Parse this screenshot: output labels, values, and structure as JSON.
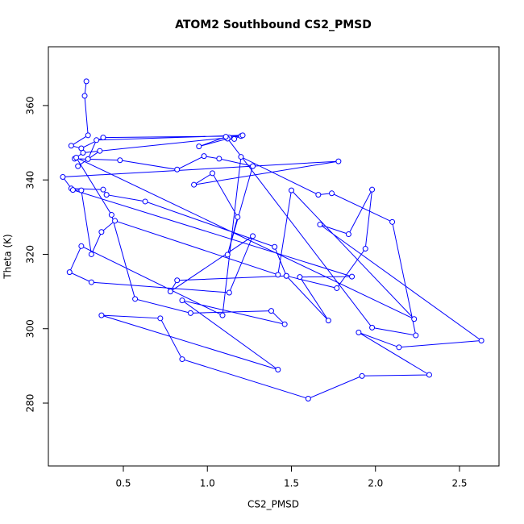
{
  "chart_data": {
    "type": "line",
    "title": "ATOM2 Southbound CS2_PMSD",
    "x_label": "CS2_PMSD",
    "y_label": "Theta (K)",
    "color": "#0000ff",
    "xlim": [
      0.054,
      2.735
    ],
    "ylim": [
      263.1,
      375.8
    ],
    "xticks": [
      0.5,
      {
        "value": 1,
        "label": "1.0"
      },
      1.5,
      {
        "value": 2,
        "label": "2.0"
      },
      2.5
    ],
    "yticks": [
      280,
      300,
      320,
      340,
      360
    ],
    "x": [
      0.28,
      0.27,
      0.29,
      0.19,
      0.25,
      0.38,
      1.2,
      1.13,
      0.26,
      0.21,
      0.48,
      0.82,
      0.98,
      1.07,
      1.27,
      1.12,
      1.18,
      1.03,
      0.92,
      1.78,
      0.14,
      0.19,
      0.38,
      0.4,
      0.63,
      1.4,
      1.47,
      1.72,
      1.55,
      1.86,
      0.2,
      0.25,
      0.31,
      0.37,
      0.45,
      1.42,
      1.5,
      2.23,
      0.22,
      0.43,
      0.57,
      0.9,
      1.38,
      1.46,
      0.85,
      1.42,
      0.37,
      0.72,
      0.85,
      1.6,
      1.92,
      2.32,
      1.9,
      2.14,
      2.63,
      1.67,
      1.84,
      1.98,
      1.94,
      1.77,
      1.47,
      0.82,
      0.78,
      1.27,
      1.13,
      0.31,
      0.18,
      0.25,
      1.09,
      1.2,
      1.66,
      1.74,
      2.1,
      2.24,
      1.98,
      1.12,
      0.95,
      1.11,
      1.16,
      1.21,
      0.34,
      0.29,
      0.23,
      0.36
    ],
    "values": [
      366.5,
      362.6,
      352.0,
      349.2,
      348.5,
      351.4,
      351.8,
      351.4,
      347.3,
      345.7,
      345.3,
      342.8,
      346.4,
      345.7,
      343.7,
      319.9,
      330.0,
      341.8,
      338.7,
      345.0,
      340.8,
      337.7,
      337.4,
      336.0,
      334.2,
      322.0,
      314.2,
      302.2,
      313.9,
      314.0,
      337.3,
      337.2,
      320.0,
      326.0,
      329.0,
      314.5,
      337.2,
      302.6,
      346.0,
      330.6,
      308.0,
      304.2,
      304.8,
      301.2,
      307.6,
      289.0,
      303.6,
      302.8,
      291.8,
      281.2,
      287.3,
      287.6,
      299.0,
      295.0,
      296.8,
      328.0,
      325.4,
      337.4,
      321.5,
      310.9,
      314.2,
      313.0,
      310.0,
      324.9,
      309.7,
      312.5,
      315.2,
      322.2,
      303.6,
      346.2,
      336.0,
      336.4,
      328.7,
      298.2,
      300.3,
      351.1,
      349.0,
      351.6,
      351.0,
      352.0,
      350.7,
      345.6,
      343.7,
      347.8
    ]
  }
}
